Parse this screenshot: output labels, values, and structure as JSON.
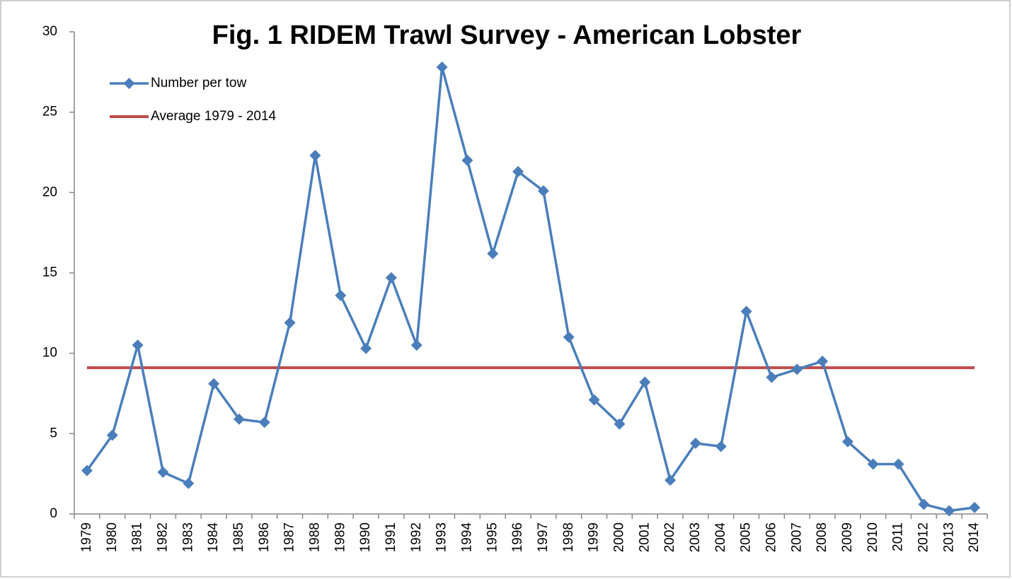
{
  "chart_data": {
    "type": "line",
    "title": "Fig. 1 RIDEM  Trawl Survey - American Lobster",
    "categories": [
      "1979",
      "1980",
      "1981",
      "1982",
      "1983",
      "1984",
      "1985",
      "1986",
      "1987",
      "1988",
      "1989",
      "1990",
      "1991",
      "1992",
      "1993",
      "1994",
      "1995",
      "1996",
      "1997",
      "1998",
      "1999",
      "2000",
      "2001",
      "2002",
      "2003",
      "2004",
      "2005",
      "2006",
      "2007",
      "2008",
      "2009",
      "2010",
      "2011",
      "2012",
      "2013",
      "2014"
    ],
    "series": [
      {
        "name": "Number per tow",
        "color": "#4a7ebb",
        "marker": "diamond",
        "values": [
          2.7,
          4.9,
          10.5,
          2.6,
          1.9,
          8.1,
          5.9,
          5.7,
          11.9,
          22.3,
          13.6,
          10.3,
          14.7,
          10.5,
          27.8,
          22.0,
          16.2,
          21.3,
          20.1,
          11.0,
          7.1,
          5.6,
          8.2,
          2.1,
          4.4,
          4.2,
          12.6,
          8.5,
          9.0,
          9.5,
          4.5,
          3.1,
          3.1,
          0.6,
          0.2,
          0.4
        ]
      },
      {
        "name": "Average 1979 - 2014",
        "color": "#be4b48",
        "marker": "none",
        "values": [
          9.1,
          9.1,
          9.1,
          9.1,
          9.1,
          9.1,
          9.1,
          9.1,
          9.1,
          9.1,
          9.1,
          9.1,
          9.1,
          9.1,
          9.1,
          9.1,
          9.1,
          9.1,
          9.1,
          9.1,
          9.1,
          9.1,
          9.1,
          9.1,
          9.1,
          9.1,
          9.1,
          9.1,
          9.1,
          9.1,
          9.1,
          9.1,
          9.1,
          9.1,
          9.1,
          9.1
        ]
      }
    ],
    "ylim": [
      0,
      30
    ],
    "yticks": [
      0,
      5,
      10,
      15,
      20,
      25,
      30
    ],
    "grid": false,
    "legend": "top-left"
  }
}
